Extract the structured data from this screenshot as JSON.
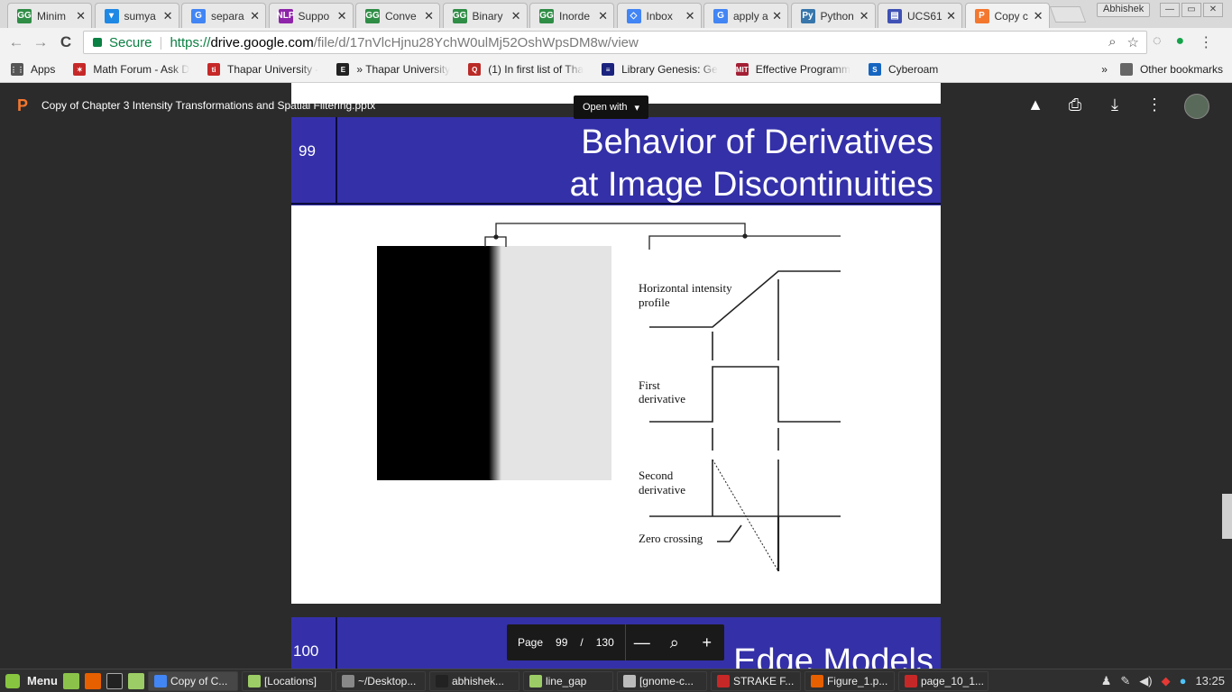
{
  "tabs": [
    {
      "title": "Minim",
      "icon": "gfg-icon",
      "color": "#2f8d46",
      "glyph": "GG"
    },
    {
      "title": "sumya",
      "icon": "shield-icon",
      "color": "#1e88e5",
      "glyph": "▾"
    },
    {
      "title": "separa",
      "icon": "google-icon",
      "color": "#4285f4",
      "glyph": "G"
    },
    {
      "title": "Suppo",
      "icon": "nlp-icon",
      "color": "#8e24aa",
      "glyph": "NLP"
    },
    {
      "title": "Conve",
      "icon": "gfg-icon",
      "color": "#2f8d46",
      "glyph": "GG"
    },
    {
      "title": "Binary",
      "icon": "gfg-icon",
      "color": "#2f8d46",
      "glyph": "GG"
    },
    {
      "title": "Inorde",
      "icon": "gfg-icon",
      "color": "#2f8d46",
      "glyph": "GG"
    },
    {
      "title": "Inbox",
      "icon": "inbox-icon",
      "color": "#4285f4",
      "glyph": "◇"
    },
    {
      "title": "apply a",
      "icon": "google-icon",
      "color": "#4285f4",
      "glyph": "G"
    },
    {
      "title": "Python",
      "icon": "python-icon",
      "color": "#3776ab",
      "glyph": "Py"
    },
    {
      "title": "UCS61",
      "icon": "classroom-icon",
      "color": "#3f51b5",
      "glyph": "▤"
    },
    {
      "title": "Copy c",
      "icon": "slides-icon",
      "color": "#f4772e",
      "glyph": "P"
    }
  ],
  "window": {
    "profile": "Abhishek",
    "min": "—",
    "max": "▭",
    "close": "✕"
  },
  "toolbar": {
    "back": "←",
    "forward": "→",
    "reload": "C",
    "secure_label": "Secure",
    "url_scheme": "https://",
    "url_host": "drive.google.com",
    "url_path": "/file/d/17nVlcHjnu28YchW0ulMj52OshWpsDM8w/view"
  },
  "bookmarks": [
    {
      "label": "Apps",
      "icon": "apps-grid-icon",
      "color": "#555",
      "glyph": "⋮⋮"
    },
    {
      "label": "Math Forum - Ask D",
      "icon": "math-forum-icon",
      "color": "#c62828",
      "glyph": "✶"
    },
    {
      "label": "Thapar University -",
      "icon": "thapar-icon",
      "color": "#c62828",
      "glyph": "ti"
    },
    {
      "label": "» Thapar University",
      "icon": "e-icon",
      "color": "#222",
      "glyph": "E"
    },
    {
      "label": "(1) In first list of Tha",
      "icon": "quora-icon",
      "color": "#b92b27",
      "glyph": "Q"
    },
    {
      "label": "Library Genesis: Ge",
      "icon": "libgen-icon",
      "color": "#1a237e",
      "glyph": "≡"
    },
    {
      "label": "Effective Programm",
      "icon": "mit-icon",
      "color": "#a31f34",
      "glyph": "MIT"
    },
    {
      "label": "Cyberoam",
      "icon": "cyberoam-icon",
      "color": "#1565c0",
      "glyph": "S"
    }
  ],
  "bookmarks_more": "»",
  "other_bookmarks": "Other bookmarks",
  "viewer": {
    "doc_title": "Copy of Chapter 3 Intensity Transformations and Spatial Filtering.pptx",
    "open_with": "Open with"
  },
  "slide": {
    "number": "99",
    "title_line1": "Behavior of Derivatives",
    "title_line2": "at Image Discontinuities",
    "labels": {
      "profile1": "Horizontal intensity",
      "profile2": "profile",
      "first1": "First",
      "first2": "derivative",
      "second1": "Second",
      "second2": "derivative",
      "zero": "Zero crossing"
    }
  },
  "next_slide": {
    "number": "100",
    "title": "Edge Models"
  },
  "pager": {
    "label": "Page",
    "current": "99",
    "slash": "/",
    "total": "130",
    "zoom_out": "—",
    "zoom_in": "+"
  },
  "taskbar": {
    "menu": "Menu",
    "tasks": [
      "Copy of C...",
      "[Locations]",
      "~/Desktop...",
      "abhishek...",
      "line_gap",
      "[gnome-c...",
      "STRAKE F...",
      "Figure_1.p...",
      "page_10_1..."
    ],
    "time": "13:25"
  }
}
